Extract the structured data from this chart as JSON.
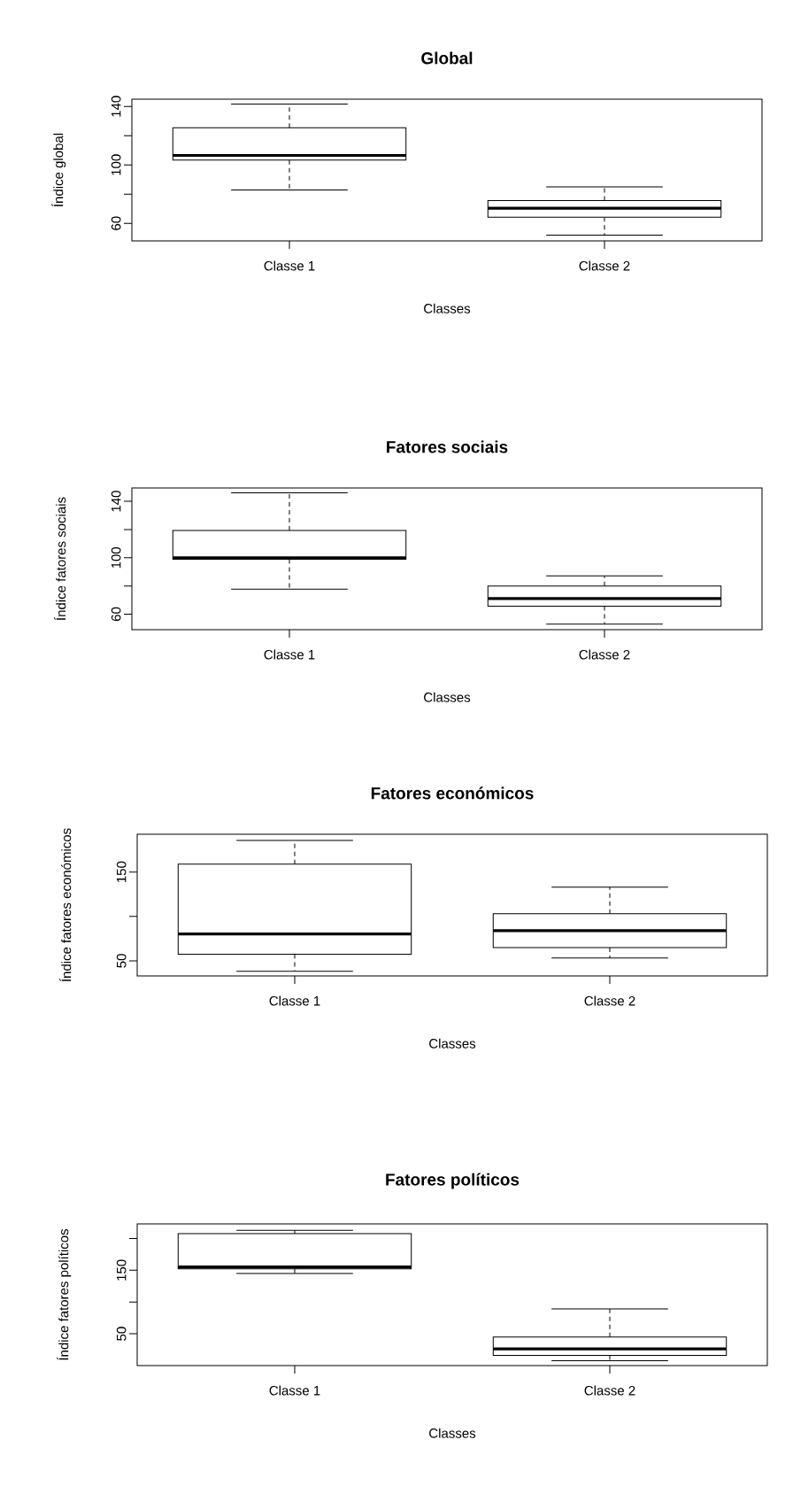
{
  "chart_data": [
    {
      "type": "box",
      "title": "Global",
      "xlabel": "Classes",
      "ylabel": "Índice global",
      "categories": [
        "Classe 1",
        "Classe 2"
      ],
      "boxes": [
        {
          "low": 82.8,
          "q1": 103.3,
          "median": 106.5,
          "q3": 125.4,
          "high": 141.6
        },
        {
          "low": 51.9,
          "q1": 64.2,
          "median": 70.4,
          "q3": 75.6,
          "high": 85.0
        }
      ],
      "ylim": [
        48,
        145
      ],
      "yticks": [
        60,
        {
          "value": 80,
          "label": null
        },
        100,
        {
          "value": 120,
          "label": null
        },
        140
      ]
    },
    {
      "type": "box",
      "title": "Fatores sociais",
      "xlabel": "Classes",
      "ylabel": "Índice fatores sociais",
      "categories": [
        "Classe 1",
        "Classe 2"
      ],
      "boxes": [
        {
          "low": 77.8,
          "q1": 99,
          "median": 100,
          "q3": 119.3,
          "high": 146
        },
        {
          "low": 53,
          "q1": 65.7,
          "median": 71,
          "q3": 80,
          "high": 87.1
        }
      ],
      "ylim": [
        49,
        149.5
      ],
      "yticks": [
        60,
        {
          "value": 80,
          "label": null
        },
        100,
        {
          "value": 120,
          "label": null
        },
        140
      ]
    },
    {
      "type": "box",
      "title": "Fatores económicos",
      "xlabel": "Classes",
      "ylabel": "Índice fatores económicos",
      "categories": [
        "Classe 1",
        "Classe 2"
      ],
      "boxes": [
        {
          "low": 38.3,
          "q1": 57.4,
          "median": 80.3,
          "q3": 159,
          "high": 185.6
        },
        {
          "low": 53.2,
          "q1": 64.9,
          "median": 84,
          "q3": 103,
          "high": 133
        }
      ],
      "ylim": [
        33,
        192.6
      ],
      "yticks": [
        50,
        {
          "value": 100,
          "label": null
        },
        150
      ]
    },
    {
      "type": "box",
      "title": "Fatores políticos",
      "xlabel": "Classes",
      "ylabel": "Índice fatores políticos",
      "categories": [
        "Classe 1",
        "Classe 2"
      ],
      "boxes": [
        {
          "low": 144.8,
          "q1": 152.2,
          "median": 155.2,
          "q3": 207.8,
          "high": 213
        },
        {
          "low": 7.8,
          "q1": 15.9,
          "median": 26.3,
          "q3": 44.8,
          "high": 89.3
        }
      ],
      "ylim": [
        0,
        223
      ],
      "yticks": [
        50,
        {
          "value": 100,
          "label": null
        },
        150,
        {
          "value": 200,
          "label": null
        }
      ]
    }
  ]
}
